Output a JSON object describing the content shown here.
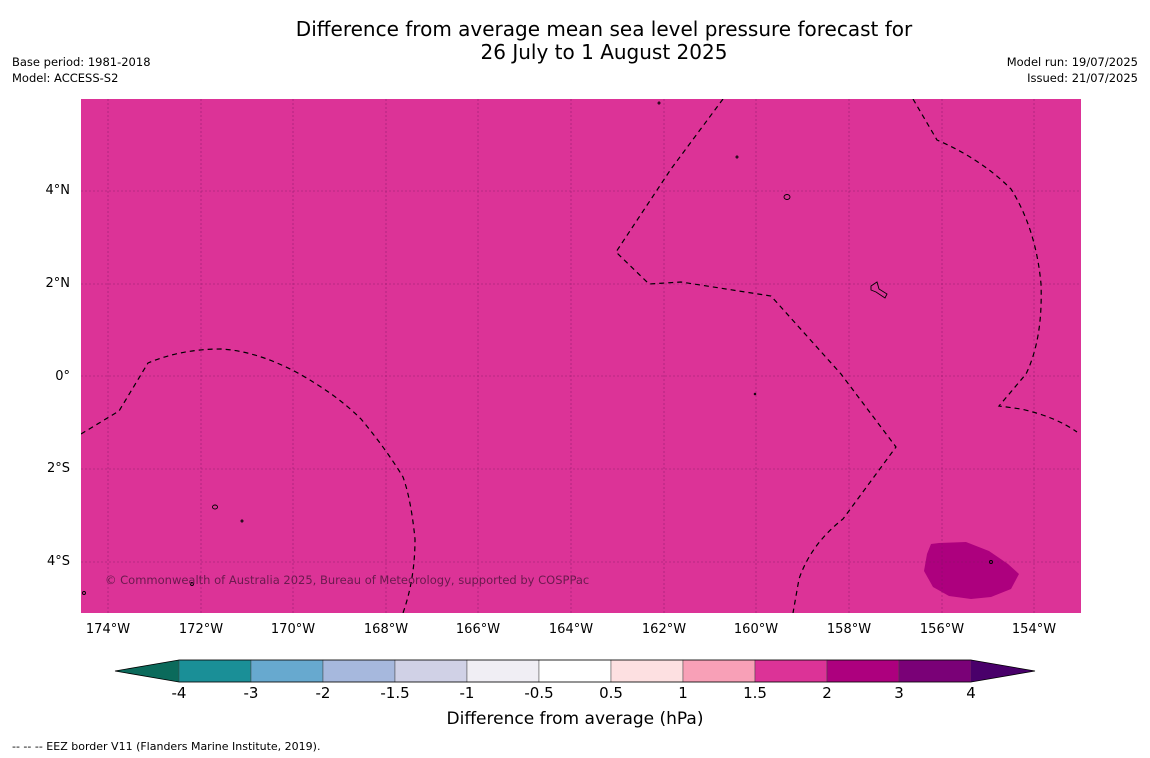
{
  "title": {
    "line1": "Difference from average mean sea level pressure forecast for",
    "line2": "26 July to 1 August 2025"
  },
  "meta": {
    "base_period": "Base period: 1981-2018",
    "model": "Model: ACCESS-S2",
    "model_run": "Model run: 19/07/2025",
    "issued": "Issued: 21/07/2025"
  },
  "map": {
    "background_color": "#dc3397",
    "high_anomaly_color": "#ad007e",
    "copyright": "© Commonwealth of Australia 2025, Bureau of Meteorology, supported by COSPPac",
    "lat_labels": [
      "4°N",
      "2°N",
      "0°",
      "2°S",
      "4°S"
    ],
    "lon_labels": [
      "174°W",
      "172°W",
      "170°W",
      "168°W",
      "166°W",
      "164°W",
      "162°W",
      "160°W",
      "158°W",
      "156°W",
      "154°W"
    ]
  },
  "colorbar": {
    "label": "Difference from average (hPa)",
    "ticks": [
      "-4",
      "-3",
      "-2",
      "-1.5",
      "-1",
      "-0.5",
      "0.5",
      "1",
      "1.5",
      "2",
      "3",
      "4"
    ],
    "colors": [
      "#0b6a5b",
      "#1a8f97",
      "#67a9cf",
      "#a6b8dd",
      "#d0d1e6",
      "#f0eef4",
      "#ffffff",
      "#fde0e1",
      "#f8a0b7",
      "#dc3397",
      "#ad007e",
      "#7a0177",
      "#49006a"
    ]
  },
  "footer": "-- -- -- EEZ border V11 (Flanders Marine Institute, 2019)."
}
